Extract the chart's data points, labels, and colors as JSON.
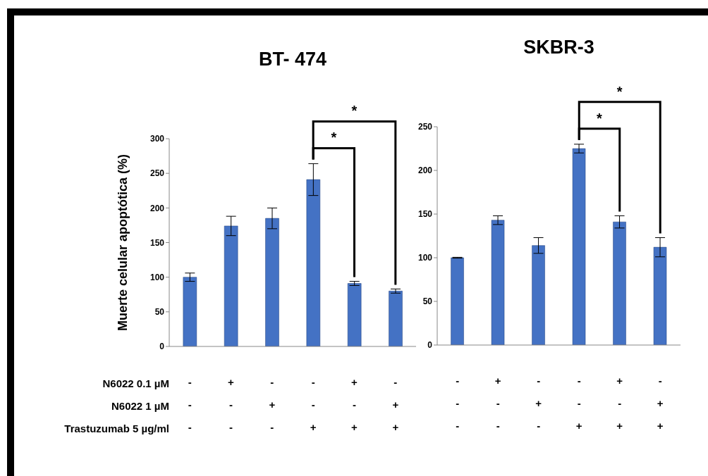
{
  "chart_data": [
    {
      "type": "bar",
      "title": "BT- 474",
      "ylabel": "Muerte celular apoptótica (%)",
      "xlabel": "N6022 0.1 µM\nN6022 1 µM\nTrastuzumab 5 µg/ml",
      "categories": [
        "-\n-\n-",
        "+\n-\n-",
        "-\n+\n-",
        "-\n-\n+",
        "+\n-\n+",
        "-\n+\n+"
      ],
      "color": "#4472c4",
      "values": [
        100,
        174,
        185,
        241,
        91,
        80
      ],
      "errors": [
        6,
        14,
        15,
        23,
        3,
        3
      ],
      "ylim": [
        0,
        300
      ],
      "yticks": [
        0,
        50,
        100,
        150,
        200,
        250,
        300
      ],
      "grid": false,
      "legend": false,
      "annotations": [
        "*",
        "*"
      ]
    },
    {
      "type": "bar",
      "title": "SKBR-3",
      "categories": [
        "-\n-\n-",
        "+\n-\n-",
        "-\n+\n-",
        "-\n-\n+",
        "+\n-\n+",
        "-\n+\n+"
      ],
      "color": "#4472c4",
      "values": [
        100,
        143,
        114,
        225,
        141,
        112
      ],
      "errors": [
        0.5,
        5,
        9,
        5,
        7,
        11
      ],
      "ylim": [
        0,
        250
      ],
      "yticks": [
        0,
        50,
        100,
        150,
        200,
        250
      ],
      "grid": false,
      "legend": false,
      "annotations": [
        "*",
        "*"
      ]
    }
  ]
}
